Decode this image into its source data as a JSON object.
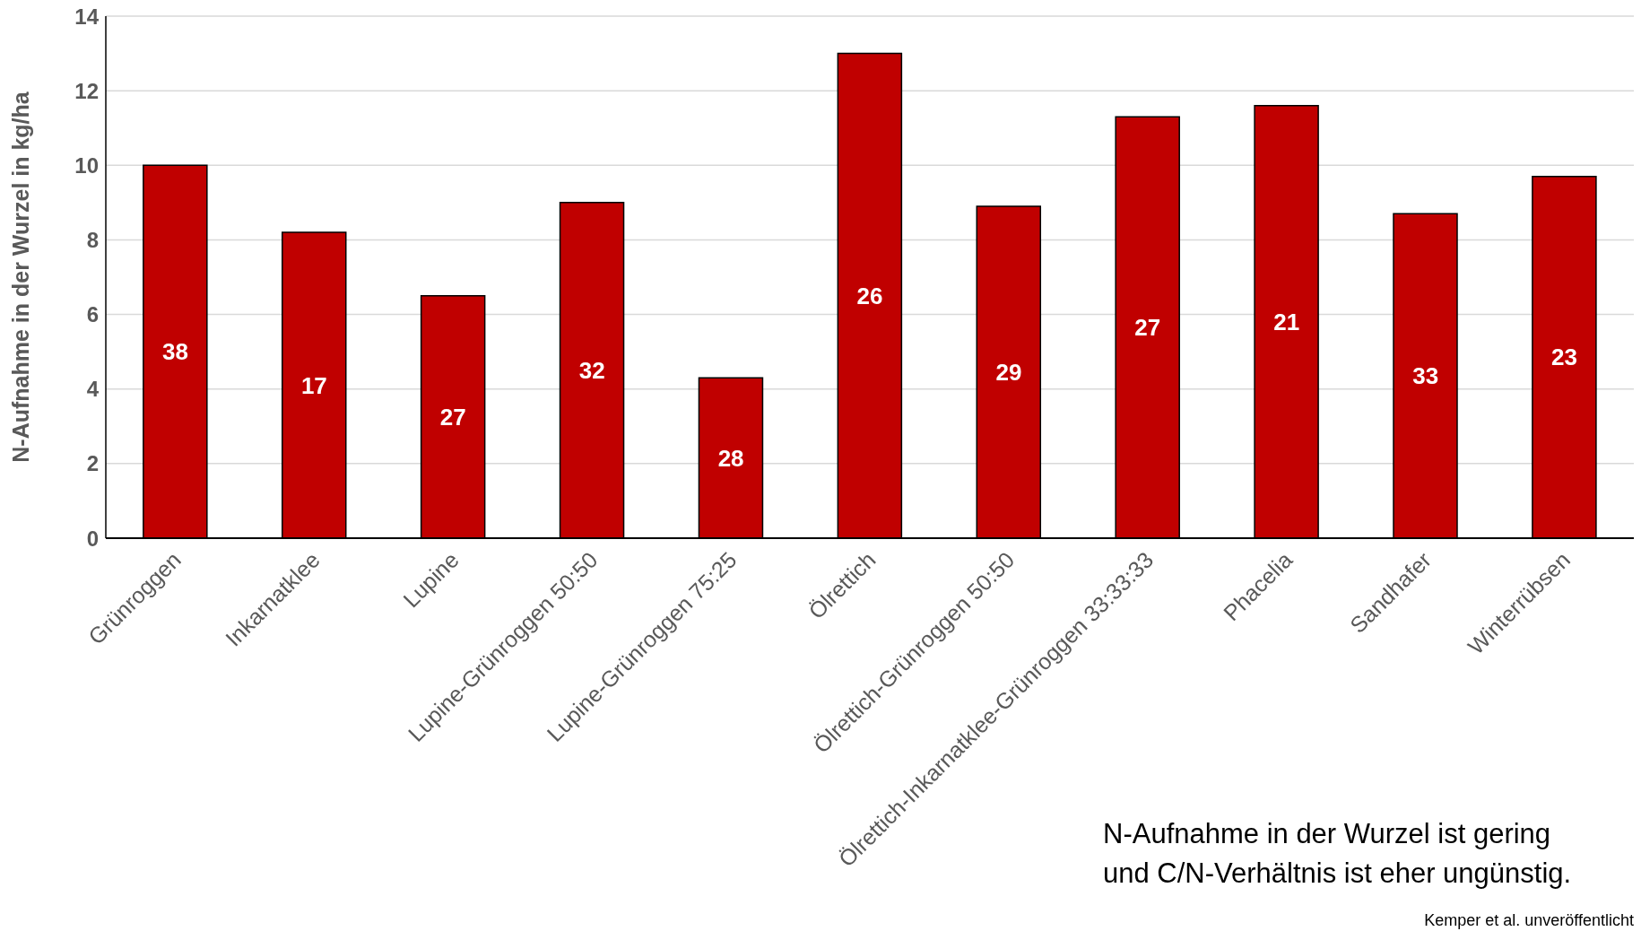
{
  "chart_data": {
    "type": "bar",
    "ylabel": "N-Aufnahme in der Wurzel in kg/ha",
    "categories": [
      "Grünroggen",
      "Inkarnatklee",
      "Lupine",
      "Lupine-Grünroggen 50:50",
      "Lupine-Grünroggen 75:25",
      "Ölrettich",
      "Ölrettich-Grünroggen 50:50",
      "Ölrettich-Inkarnatklee-Grünroggen 33:33:33",
      "Phacelia",
      "Sandhafer",
      "Winterrübsen"
    ],
    "values": [
      10.0,
      8.2,
      6.5,
      9.0,
      4.3,
      13.0,
      8.9,
      11.3,
      11.6,
      8.7,
      9.7
    ],
    "color": "#c00000",
    "ylim": [
      0,
      14
    ],
    "yticks": [
      0,
      2,
      4,
      6,
      8,
      10,
      12,
      14
    ],
    "grid": "y",
    "legend": false,
    "annotations": [
      "38",
      "17",
      "27",
      "32",
      "28",
      "26",
      "29",
      "27",
      "21",
      "33",
      "23",
      "N-Aufnahme in der Wurzel ist gering und C/N-Verhältnis ist eher ungünstig.",
      "Kemper et al. unveröffentlicht"
    ]
  }
}
